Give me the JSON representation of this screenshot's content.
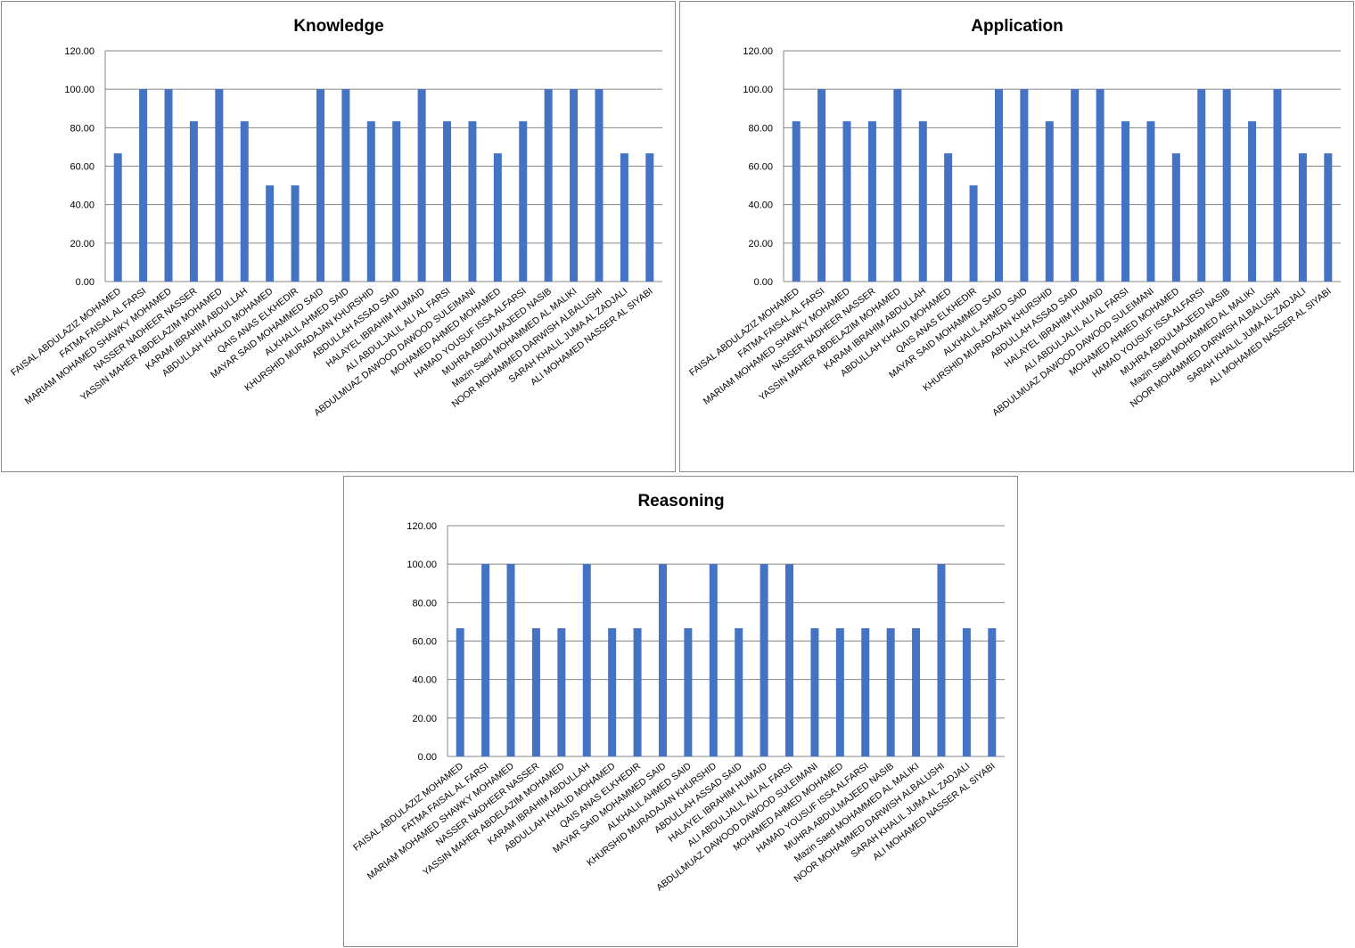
{
  "chart_data": [
    {
      "type": "bar",
      "title": "Knowledge",
      "xlabel": "",
      "ylabel": "",
      "ylim": [
        0,
        120
      ],
      "yticks": [
        "0.00",
        "20.00",
        "40.00",
        "60.00",
        "80.00",
        "100.00",
        "120.00"
      ],
      "grid": true,
      "color": "#4472C4",
      "categories": [
        "FAISAL ABDULAZIZ MOHAMED",
        "FATMA FAISAL AL FARSI",
        "MARIAM MOHAMED SHAWKY MOHAMED",
        "NASSER NADHEER NASSER",
        "YASSIN MAHER ABDELAZIM MOHAMED",
        "KARAM IBRAHIM ABDULLAH",
        "ABDULLAH KHALID MOHAMED",
        "QAIS ANAS ELKHEDIR",
        "MAYAR SAID MOHAMMED SAID",
        "ALKHALIL AHMED SAID",
        "KHURSHID MURADAJAN KHURSHID",
        "ABDULLAH ASSAD SAID",
        "HALAYEL IBRAHIM HUMAID",
        "ALI ABDULJALIL ALI AL FARSI",
        "ABDULMUAZ DAWOOD DAWOOD SULEIMANI",
        "MOHAMED AHMED MOHAMED",
        "HAMAD YOUSUF ISSA ALFARSI",
        "MUHRA ABDULMAJEED NASIB",
        "Mazin Saed MOHAMMED AL MALIKI",
        "NOOR MOHAMMED DARWISH ALBALUSHI",
        "SARAH KHALIL JUMA AL ZADJALI",
        "ALI MOHAMED NASSER AL SIYABI"
      ],
      "values": [
        66.67,
        100,
        100,
        83.33,
        100,
        83.33,
        50,
        50,
        100,
        100,
        83.33,
        83.33,
        100,
        83.33,
        83.33,
        66.67,
        83.33,
        100,
        100,
        100,
        66.67,
        66.67
      ]
    },
    {
      "type": "bar",
      "title": "Application",
      "xlabel": "",
      "ylabel": "",
      "ylim": [
        0,
        120
      ],
      "yticks": [
        "0.00",
        "20.00",
        "40.00",
        "60.00",
        "80.00",
        "100.00",
        "120.00"
      ],
      "grid": true,
      "color": "#4472C4",
      "categories": [
        "FAISAL ABDULAZIZ MOHAMED",
        "FATMA FAISAL AL FARSI",
        "MARIAM MOHAMED SHAWKY MOHAMED",
        "NASSER NADHEER NASSER",
        "YASSIN MAHER ABDELAZIM MOHAMED",
        "KARAM IBRAHIM ABDULLAH",
        "ABDULLAH KHALID MOHAMED",
        "QAIS ANAS ELKHEDIR",
        "MAYAR SAID MOHAMMED SAID",
        "ALKHALIL AHMED SAID",
        "KHURSHID MURADAJAN KHURSHID",
        "ABDULLAH ASSAD SAID",
        "HALAYEL IBRAHIM HUMAID",
        "ALI ABDULJALIL ALI AL FARSI",
        "ABDULMUAZ DAWOOD DAWOOD SULEIMANI",
        "MOHAMED AHMED MOHAMED",
        "HAMAD YOUSUF ISSA ALFARSI",
        "MUHRA ABDULMAJEED NASIB",
        "Mazin Saed MOHAMMED AL MALIKI",
        "NOOR MOHAMMED DARWISH ALBALUSHI",
        "SARAH KHALIL JUMA AL ZADJALI",
        "ALI MOHAMED NASSER AL SIYABI"
      ],
      "values": [
        83.33,
        100,
        83.33,
        83.33,
        100,
        83.33,
        66.67,
        50,
        100,
        100,
        83.33,
        100,
        100,
        83.33,
        83.33,
        66.67,
        100,
        100,
        83.33,
        100,
        66.67,
        66.67
      ]
    },
    {
      "type": "bar",
      "title": "Reasoning",
      "xlabel": "",
      "ylabel": "",
      "ylim": [
        0,
        120
      ],
      "yticks": [
        "0.00",
        "20.00",
        "40.00",
        "60.00",
        "80.00",
        "100.00",
        "120.00"
      ],
      "grid": true,
      "color": "#4472C4",
      "categories": [
        "FAISAL ABDULAZIZ MOHAMED",
        "FATMA FAISAL AL FARSI",
        "MARIAM MOHAMED SHAWKY MOHAMED",
        "NASSER NADHEER NASSER",
        "YASSIN MAHER ABDELAZIM MOHAMED",
        "KARAM IBRAHIM ABDULLAH",
        "ABDULLAH KHALID MOHAMED",
        "QAIS ANAS ELKHEDIR",
        "MAYAR SAID MOHAMMED SAID",
        "ALKHALIL AHMED SAID",
        "KHURSHID MURADAJAN KHURSHID",
        "ABDULLAH ASSAD SAID",
        "HALAYEL IBRAHIM HUMAID",
        "ALI ABDULJALIL ALI AL FARSI",
        "ABDULMUAZ DAWOOD DAWOOD SULEIMANI",
        "MOHAMED AHMED MOHAMED",
        "HAMAD YOUSUF ISSA ALFARSI",
        "MUHRA ABDULMAJEED NASIB",
        "Mazin Saed MOHAMMED AL MALIKI",
        "NOOR MOHAMMED DARWISH ALBALUSHI",
        "SARAH KHALIL JUMA AL ZADJALI",
        "ALI MOHAMED NASSER AL SIYABI"
      ],
      "values": [
        66.67,
        100,
        100,
        66.67,
        66.67,
        100,
        66.67,
        66.67,
        100,
        66.67,
        100,
        66.67,
        100,
        100,
        66.67,
        66.67,
        66.67,
        66.67,
        66.67,
        100,
        66.67,
        66.67
      ]
    }
  ]
}
